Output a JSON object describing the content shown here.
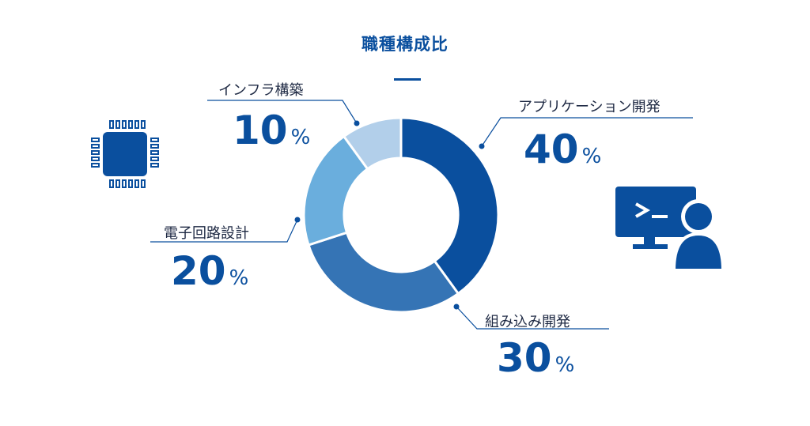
{
  "chart_data": {
    "type": "pie",
    "variant": "donut",
    "title": "職種構成比",
    "categories": [
      "アプリケーション開発",
      "組み込み開発",
      "電子回路設計",
      "インフラ構築"
    ],
    "values": [
      40,
      30,
      20,
      10
    ],
    "value_labels": [
      "40",
      "30",
      "20",
      "10"
    ],
    "unit": "%",
    "colors": [
      "#0A4F9E",
      "#3574B5",
      "#6AAEDD",
      "#B2CFEA"
    ],
    "legend": "none"
  },
  "icons": {
    "left": "microchip-icon",
    "right": "terminal-user-icon"
  },
  "theme": {
    "accent": "#0A4F9E",
    "text": "#1f2a44"
  }
}
